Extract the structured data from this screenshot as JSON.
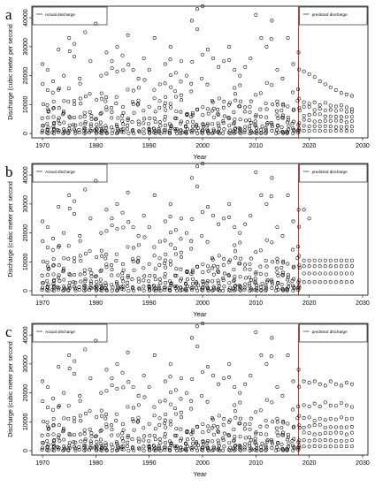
{
  "chart_data": [
    {
      "type": "scatter",
      "panel_label": "a",
      "xlabel": "Year",
      "ylabel": "Discharge (cubic meter per second",
      "xlim": [
        1968,
        2031
      ],
      "ylim": [
        -1500,
        44000
      ],
      "x_ticks": [
        "1970",
        "1980",
        "1990",
        "2000",
        "2010",
        "2020",
        "2030"
      ],
      "y_ticks": [
        "0",
        "10000",
        "20000",
        "30000",
        "40000"
      ],
      "legend": [
        {
          "label": "Actual discharge",
          "placement": "top-left"
        },
        {
          "label": "predicted discharge",
          "placement": "top-right"
        }
      ],
      "divider_year": 2018,
      "divider_color": "#e02020",
      "annual_peaks": [
        [
          1970,
          24000
        ],
        [
          1971,
          22000
        ],
        [
          1972,
          18000
        ],
        [
          1973,
          29000
        ],
        [
          1974,
          20000
        ],
        [
          1975,
          33000
        ],
        [
          1976,
          31000
        ],
        [
          1977,
          19000
        ],
        [
          1978,
          35000
        ],
        [
          1979,
          25000
        ],
        [
          1980,
          38000
        ],
        [
          1981,
          20000
        ],
        [
          1982,
          28000
        ],
        [
          1983,
          25000
        ],
        [
          1984,
          30000
        ],
        [
          1985,
          27000
        ],
        [
          1986,
          34000
        ],
        [
          1987,
          22000
        ],
        [
          1988,
          19000
        ],
        [
          1989,
          26000
        ],
        [
          1990,
          22000
        ],
        [
          1991,
          33000
        ],
        [
          1992,
          17000
        ],
        [
          1993,
          24000
        ],
        [
          1994,
          30000
        ],
        [
          1995,
          21000
        ],
        [
          1996,
          25000
        ],
        [
          1997,
          20000
        ],
        [
          1998,
          39000
        ],
        [
          1999,
          43000
        ],
        [
          2000,
          44000
        ],
        [
          2001,
          29000
        ],
        [
          2002,
          26000
        ],
        [
          2003,
          23000
        ],
        [
          2004,
          25000
        ],
        [
          2005,
          30000
        ],
        [
          2006,
          22000
        ],
        [
          2007,
          20000
        ],
        [
          2008,
          23000
        ],
        [
          2009,
          26000
        ],
        [
          2010,
          41000
        ],
        [
          2011,
          33000
        ],
        [
          2012,
          30000
        ],
        [
          2013,
          39000
        ],
        [
          2014,
          22000
        ],
        [
          2015,
          19000
        ],
        [
          2016,
          33000
        ],
        [
          2017,
          24000
        ],
        [
          2018,
          28000
        ]
      ],
      "predicted_peaks": [
        [
          2019,
          21500
        ],
        [
          2020,
          20500
        ],
        [
          2021,
          19500
        ],
        [
          2022,
          18000
        ],
        [
          2023,
          17000
        ],
        [
          2024,
          16000
        ],
        [
          2025,
          15000
        ],
        [
          2026,
          14000
        ],
        [
          2027,
          13500
        ],
        [
          2028,
          13000
        ]
      ],
      "predicted_levels": [
        11000,
        9000,
        6500,
        4500,
        2500,
        1000
      ]
    },
    {
      "type": "scatter",
      "panel_label": "b",
      "xlabel": "Year",
      "ylabel": "Discharge (cubic meter per second",
      "xlim": [
        1968,
        2031
      ],
      "ylim": [
        -1500,
        44000
      ],
      "x_ticks": [
        "1970",
        "1980",
        "1990",
        "2000",
        "2010",
        "2020",
        "2030"
      ],
      "y_ticks": [
        "0",
        "10000",
        "20000",
        "30000",
        "40000"
      ],
      "legend": [
        {
          "label": "Actual discharge",
          "placement": "top-left"
        },
        {
          "label": "predicted discharge",
          "placement": "top-right"
        }
      ],
      "divider_year": 2018,
      "divider_color": "#e02020",
      "annual_peaks": [
        [
          1970,
          24000
        ],
        [
          1971,
          22000
        ],
        [
          1972,
          18000
        ],
        [
          1973,
          29000
        ],
        [
          1974,
          20000
        ],
        [
          1975,
          33000
        ],
        [
          1976,
          31000
        ],
        [
          1977,
          19000
        ],
        [
          1978,
          35000
        ],
        [
          1979,
          25000
        ],
        [
          1980,
          38000
        ],
        [
          1981,
          20000
        ],
        [
          1982,
          28000
        ],
        [
          1983,
          25000
        ],
        [
          1984,
          30000
        ],
        [
          1985,
          27000
        ],
        [
          1986,
          34000
        ],
        [
          1987,
          22000
        ],
        [
          1988,
          19000
        ],
        [
          1989,
          26000
        ],
        [
          1990,
          22000
        ],
        [
          1991,
          33000
        ],
        [
          1992,
          17000
        ],
        [
          1993,
          24000
        ],
        [
          1994,
          30000
        ],
        [
          1995,
          21000
        ],
        [
          1996,
          25000
        ],
        [
          1997,
          20000
        ],
        [
          1998,
          39000
        ],
        [
          1999,
          43000
        ],
        [
          2000,
          44000
        ],
        [
          2001,
          29000
        ],
        [
          2002,
          26000
        ],
        [
          2003,
          23000
        ],
        [
          2004,
          25000
        ],
        [
          2005,
          30000
        ],
        [
          2006,
          22000
        ],
        [
          2007,
          20000
        ],
        [
          2008,
          23000
        ],
        [
          2009,
          26000
        ],
        [
          2010,
          41000
        ],
        [
          2011,
          33000
        ],
        [
          2012,
          30000
        ],
        [
          2013,
          39000
        ],
        [
          2014,
          22000
        ],
        [
          2015,
          19000
        ],
        [
          2016,
          33000
        ],
        [
          2017,
          24000
        ],
        [
          2018,
          28000
        ]
      ],
      "predicted_peaks": [
        [
          2019,
          28000
        ],
        [
          2020,
          25000
        ]
      ],
      "predicted_levels": [
        10500,
        8500,
        6000,
        3000
      ]
    },
    {
      "type": "scatter",
      "panel_label": "c",
      "xlabel": "Year",
      "ylabel": "Discharge (cubic meter per second",
      "xlim": [
        1968,
        2031
      ],
      "ylim": [
        -1500,
        44000
      ],
      "x_ticks": [
        "1970",
        "1980",
        "1990",
        "2000",
        "2010",
        "2020",
        "2030"
      ],
      "y_ticks": [
        "0",
        "10000",
        "20000",
        "30000",
        "40000"
      ],
      "legend": [
        {
          "label": "Actual discharge",
          "placement": "top-left"
        },
        {
          "label": "predicted discharge",
          "placement": "top-right"
        }
      ],
      "divider_year": 2018,
      "divider_color": "#e02020",
      "annual_peaks": [
        [
          1970,
          24000
        ],
        [
          1971,
          22000
        ],
        [
          1972,
          18000
        ],
        [
          1973,
          29000
        ],
        [
          1974,
          20000
        ],
        [
          1975,
          33000
        ],
        [
          1976,
          31000
        ],
        [
          1977,
          19000
        ],
        [
          1978,
          35000
        ],
        [
          1979,
          25000
        ],
        [
          1980,
          38000
        ],
        [
          1981,
          20000
        ],
        [
          1982,
          28000
        ],
        [
          1983,
          25000
        ],
        [
          1984,
          30000
        ],
        [
          1985,
          27000
        ],
        [
          1986,
          34000
        ],
        [
          1987,
          22000
        ],
        [
          1988,
          19000
        ],
        [
          1989,
          26000
        ],
        [
          1990,
          22000
        ],
        [
          1991,
          33000
        ],
        [
          1992,
          17000
        ],
        [
          1993,
          24000
        ],
        [
          1994,
          30000
        ],
        [
          1995,
          21000
        ],
        [
          1996,
          25000
        ],
        [
          1997,
          20000
        ],
        [
          1998,
          39000
        ],
        [
          1999,
          43000
        ],
        [
          2000,
          44000
        ],
        [
          2001,
          29000
        ],
        [
          2002,
          26000
        ],
        [
          2003,
          23000
        ],
        [
          2004,
          25000
        ],
        [
          2005,
          30000
        ],
        [
          2006,
          22000
        ],
        [
          2007,
          20000
        ],
        [
          2008,
          23000
        ],
        [
          2009,
          26000
        ],
        [
          2010,
          41000
        ],
        [
          2011,
          33000
        ],
        [
          2012,
          30000
        ],
        [
          2013,
          39000
        ],
        [
          2014,
          22000
        ],
        [
          2015,
          19000
        ],
        [
          2016,
          33000
        ],
        [
          2017,
          24000
        ],
        [
          2018,
          28000
        ]
      ],
      "predicted_peaks": [
        [
          2019,
          24000
        ],
        [
          2020,
          23500
        ],
        [
          2021,
          24000
        ],
        [
          2022,
          23000
        ],
        [
          2023,
          22500
        ],
        [
          2024,
          24000
        ],
        [
          2025,
          23000
        ],
        [
          2026,
          22500
        ],
        [
          2027,
          23500
        ],
        [
          2028,
          23000
        ]
      ],
      "predicted_levels": [
        16000,
        11000,
        8500,
        6000,
        3500,
        1500
      ]
    }
  ]
}
